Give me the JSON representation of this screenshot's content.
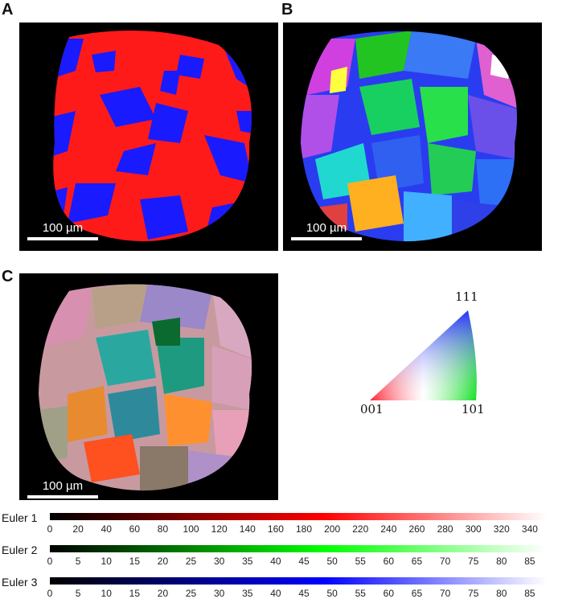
{
  "panels": {
    "a": {
      "letter": "A",
      "scale": "100 µm",
      "colors": [
        "#ff1a1a",
        "#1a1aff"
      ]
    },
    "b": {
      "letter": "B",
      "scale": "100 µm"
    },
    "c": {
      "letter": "C",
      "scale": "100 µm"
    }
  },
  "ipf_legend": {
    "top": "111",
    "left": "001",
    "right": "101"
  },
  "euler": [
    {
      "name": "Euler 1",
      "color": "#ff0000",
      "ticks": [
        "0",
        "20",
        "40",
        "60",
        "80",
        "100",
        "120",
        "140",
        "160",
        "180",
        "200",
        "220",
        "240",
        "260",
        "280",
        "300",
        "320",
        "340"
      ]
    },
    {
      "name": "Euler 2",
      "color": "#00ff00",
      "ticks": [
        "0",
        "5",
        "10",
        "15",
        "20",
        "25",
        "30",
        "35",
        "40",
        "45",
        "50",
        "55",
        "60",
        "65",
        "70",
        "75",
        "80",
        "85"
      ]
    },
    {
      "name": "Euler 3",
      "color": "#0000ff",
      "ticks": [
        "0",
        "5",
        "10",
        "15",
        "20",
        "25",
        "30",
        "35",
        "40",
        "45",
        "50",
        "55",
        "60",
        "65",
        "70",
        "75",
        "80",
        "85"
      ]
    }
  ]
}
